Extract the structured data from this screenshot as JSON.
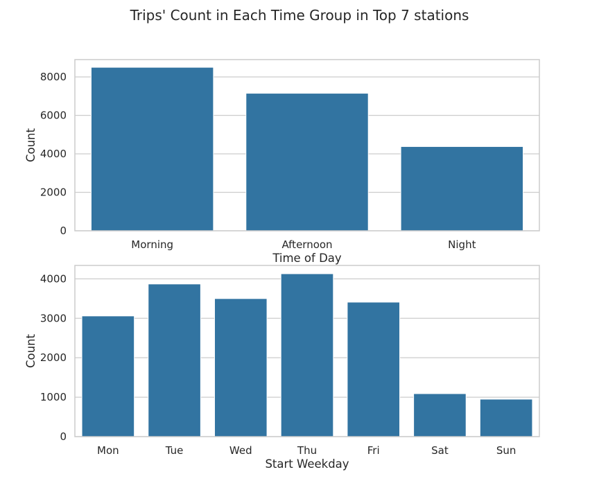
{
  "figure_title": "Trips' Count in Each Time Group in Top 7 stations",
  "colors": {
    "bar": "#3274a1",
    "grid": "#cccccc",
    "text": "#262626"
  },
  "chart_data": [
    {
      "type": "bar",
      "title": "",
      "xlabel": "Time of Day",
      "ylabel": "Count",
      "categories": [
        "Morning",
        "Afternoon",
        "Night"
      ],
      "values": [
        8500,
        7150,
        4380
      ],
      "ylim": [
        0,
        8900
      ],
      "yticks": [
        0,
        2000,
        4000,
        6000,
        8000
      ],
      "grid": true
    },
    {
      "type": "bar",
      "title": "",
      "xlabel": "Start Weekday",
      "ylabel": "Count",
      "categories": [
        "Mon",
        "Tue",
        "Wed",
        "Thu",
        "Fri",
        "Sat",
        "Sun"
      ],
      "values": [
        3060,
        3870,
        3500,
        4130,
        3410,
        1090,
        950
      ],
      "ylim": [
        0,
        4340
      ],
      "yticks": [
        0,
        1000,
        2000,
        3000,
        4000
      ],
      "grid": true
    }
  ]
}
